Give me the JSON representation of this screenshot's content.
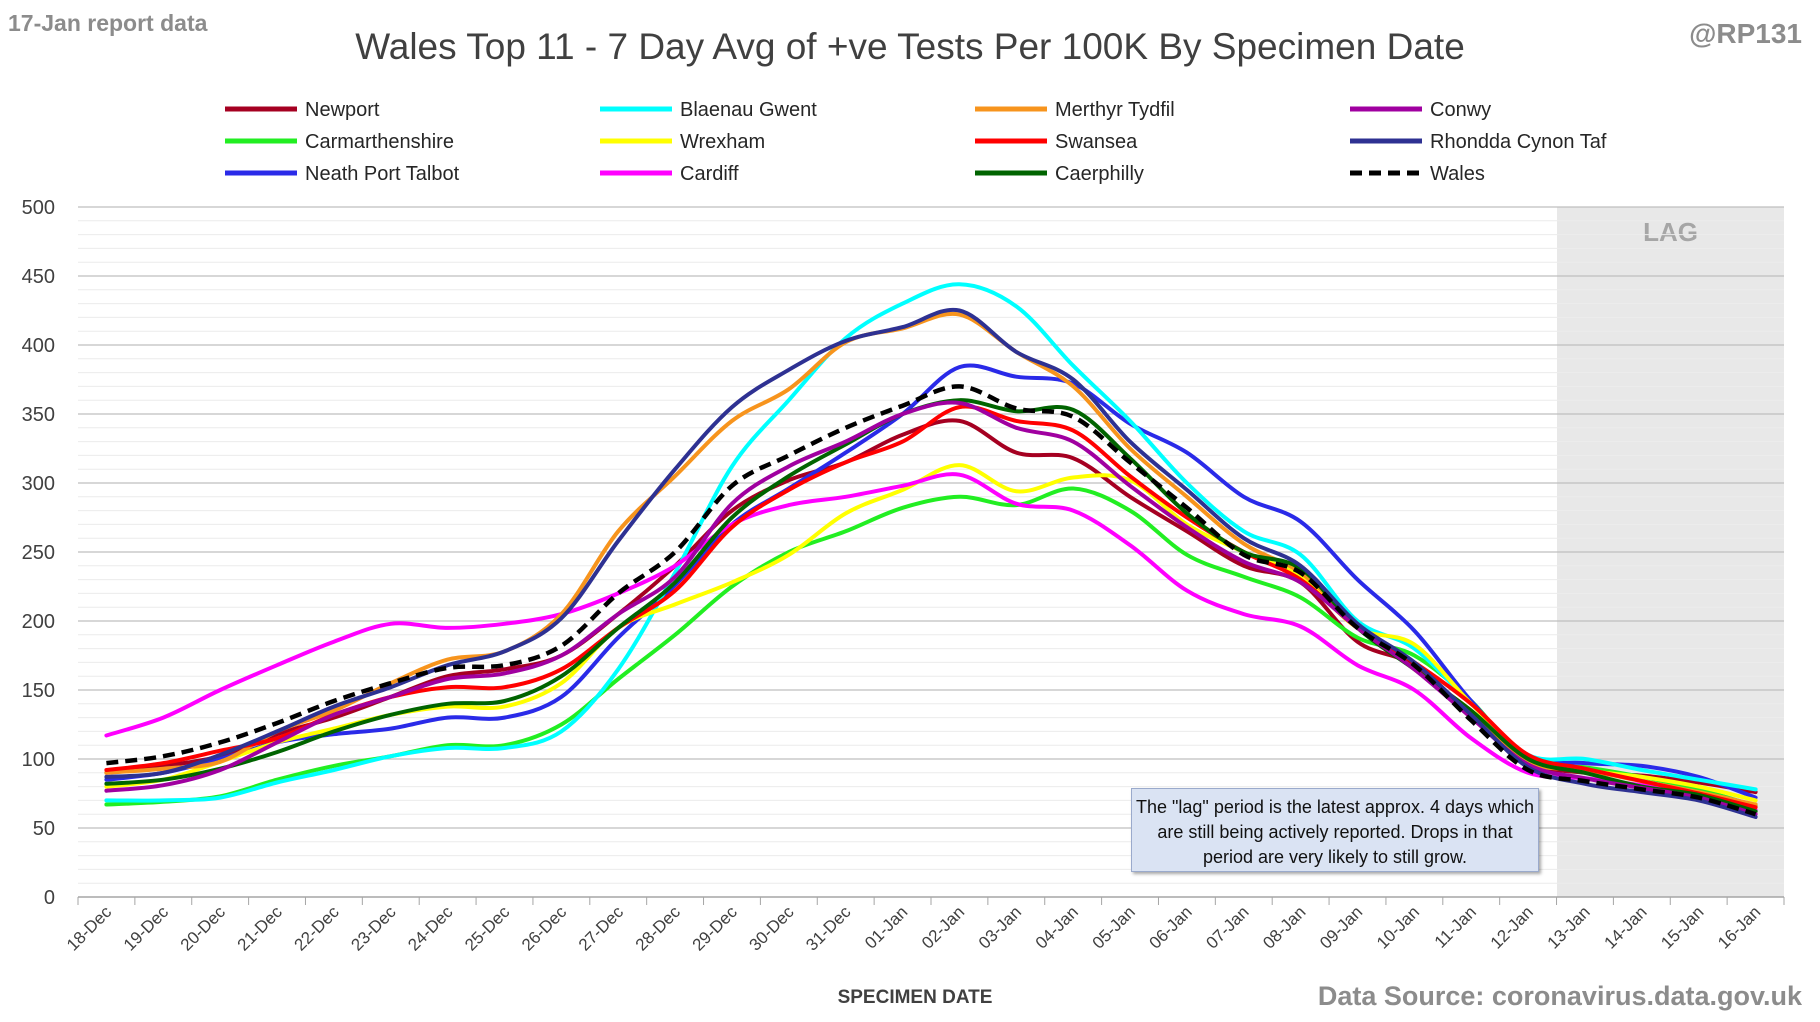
{
  "report_label": "17-Jan report data",
  "handle": "@RP131",
  "source": "Data Source: coronavirus.data.gov.uk",
  "note": "The \"lag\" period is the latest approx. 4 days which are still being actively reported.  Drops in that period are very likely to still grow.",
  "chart_data": {
    "type": "line",
    "title": "Wales Top 11 - 7 Day Avg of +ve Tests Per 100K By Specimen Date",
    "xlabel": "SPECIMEN DATE",
    "ylabel": "",
    "ylim": [
      0,
      500
    ],
    "yticks": [
      0,
      50,
      100,
      150,
      200,
      250,
      300,
      350,
      400,
      450,
      500
    ],
    "grid": true,
    "legend_position": "top",
    "lag_label": "LAG",
    "lag_categories": [
      "13-Jan",
      "16-Jan"
    ],
    "categories": [
      "18-Dec",
      "19-Dec",
      "20-Dec",
      "21-Dec",
      "22-Dec",
      "23-Dec",
      "24-Dec",
      "25-Dec",
      "26-Dec",
      "27-Dec",
      "28-Dec",
      "29-Dec",
      "30-Dec",
      "31-Dec",
      "01-Jan",
      "02-Jan",
      "03-Jan",
      "04-Jan",
      "05-Jan",
      "06-Jan",
      "07-Jan",
      "08-Jan",
      "09-Jan",
      "10-Jan",
      "11-Jan",
      "12-Jan",
      "13-Jan",
      "14-Jan",
      "15-Jan",
      "16-Jan"
    ],
    "series": [
      {
        "name": "Newport",
        "color": "#a50021",
        "dash": false,
        "values": [
          90,
          95,
          102,
          118,
          130,
          145,
          160,
          165,
          175,
          205,
          240,
          280,
          302,
          315,
          335,
          345,
          322,
          318,
          290,
          265,
          240,
          228,
          185,
          168,
          132,
          98,
          90,
          88,
          83,
          76
        ]
      },
      {
        "name": "Carmarthenshire",
        "color": "#22ee22",
        "dash": false,
        "values": [
          67,
          69,
          73,
          85,
          95,
          102,
          110,
          110,
          125,
          158,
          190,
          225,
          250,
          265,
          282,
          290,
          284,
          296,
          280,
          248,
          232,
          217,
          188,
          175,
          142,
          98,
          94,
          87,
          78,
          66
        ]
      },
      {
        "name": "Neath Port Talbot",
        "color": "#2a2ae8",
        "dash": false,
        "values": [
          85,
          90,
          100,
          112,
          118,
          122,
          130,
          130,
          145,
          188,
          226,
          270,
          296,
          322,
          350,
          384,
          377,
          372,
          343,
          322,
          290,
          272,
          230,
          193,
          142,
          102,
          97,
          95,
          87,
          72
        ]
      },
      {
        "name": "Blaenau Gwent",
        "color": "#00ffff",
        "dash": false,
        "values": [
          70,
          70,
          72,
          83,
          92,
          102,
          108,
          108,
          120,
          165,
          235,
          312,
          360,
          405,
          430,
          444,
          428,
          385,
          345,
          300,
          265,
          248,
          200,
          180,
          140,
          103,
          100,
          92,
          85,
          78
        ]
      },
      {
        "name": "Wrexham",
        "color": "#ffff00",
        "dash": false,
        "values": [
          80,
          85,
          98,
          112,
          122,
          132,
          138,
          138,
          155,
          195,
          212,
          228,
          248,
          278,
          295,
          313,
          294,
          304,
          302,
          270,
          250,
          232,
          195,
          183,
          140,
          102,
          92,
          87,
          80,
          70
        ]
      },
      {
        "name": "Cardiff",
        "color": "#ff00ff",
        "dash": false,
        "values": [
          117,
          130,
          150,
          168,
          185,
          198,
          195,
          198,
          205,
          220,
          240,
          270,
          284,
          290,
          298,
          306,
          285,
          280,
          255,
          222,
          205,
          196,
          168,
          150,
          115,
          90,
          86,
          81,
          75,
          63
        ]
      },
      {
        "name": "Merthyr Tydfil",
        "color": "#f7941d",
        "dash": false,
        "values": [
          90,
          93,
          98,
          120,
          135,
          155,
          172,
          178,
          205,
          265,
          305,
          345,
          368,
          402,
          412,
          422,
          395,
          370,
          325,
          290,
          256,
          235,
          198,
          165,
          135,
          98,
          92,
          84,
          76,
          67
        ]
      },
      {
        "name": "Swansea",
        "color": "#ff0000",
        "dash": false,
        "values": [
          92,
          97,
          106,
          115,
          132,
          145,
          152,
          152,
          165,
          195,
          222,
          268,
          295,
          315,
          330,
          355,
          345,
          338,
          305,
          275,
          250,
          230,
          195,
          170,
          140,
          103,
          93,
          84,
          75,
          65
        ]
      },
      {
        "name": "Caerphilly",
        "color": "#006400",
        "dash": false,
        "values": [
          82,
          85,
          93,
          105,
          120,
          132,
          140,
          142,
          160,
          195,
          228,
          275,
          305,
          328,
          350,
          360,
          352,
          353,
          318,
          278,
          250,
          238,
          195,
          165,
          135,
          100,
          90,
          80,
          74,
          62
        ]
      },
      {
        "name": "Conwy",
        "color": "#a000a0",
        "dash": false,
        "values": [
          77,
          81,
          92,
          112,
          132,
          145,
          158,
          162,
          175,
          205,
          232,
          285,
          312,
          330,
          350,
          358,
          340,
          330,
          298,
          268,
          243,
          228,
          195,
          165,
          130,
          96,
          86,
          79,
          72,
          60
        ]
      },
      {
        "name": "Rhondda Cynon Taf",
        "color": "#2e3192",
        "dash": false,
        "values": [
          87,
          90,
          103,
          120,
          138,
          152,
          168,
          178,
          202,
          258,
          310,
          355,
          382,
          403,
          413,
          425,
          395,
          375,
          330,
          295,
          260,
          240,
          198,
          170,
          132,
          94,
          82,
          76,
          70,
          58
        ]
      },
      {
        "name": "Wales",
        "color": "#000000",
        "dash": true,
        "values": [
          97,
          102,
          112,
          126,
          142,
          155,
          166,
          168,
          182,
          220,
          250,
          298,
          320,
          340,
          356,
          370,
          354,
          348,
          315,
          282,
          248,
          235,
          195,
          168,
          128,
          92,
          84,
          78,
          72,
          60
        ]
      }
    ]
  }
}
